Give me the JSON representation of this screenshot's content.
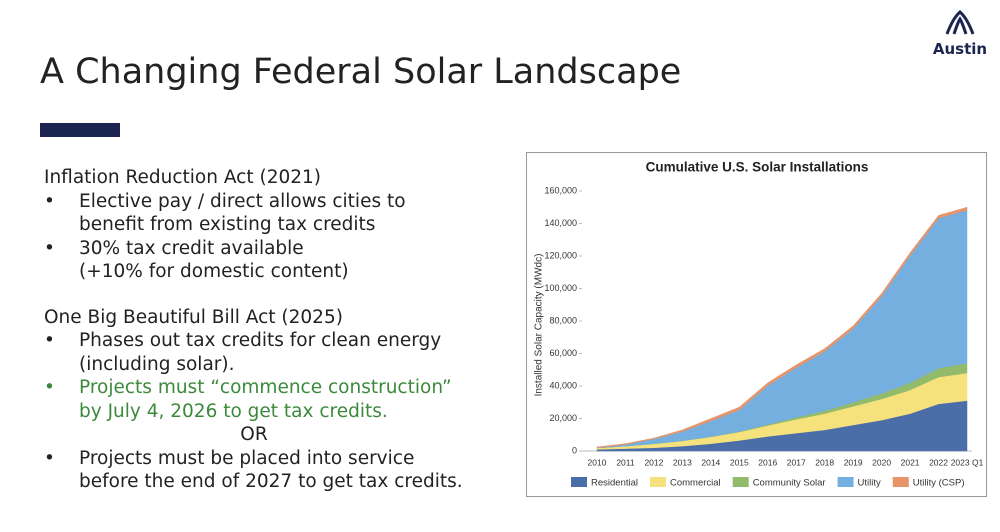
{
  "logo": "Austin",
  "title": "A Changing Federal Solar Landscape",
  "sections": [
    {
      "heading": "Inflation Reduction Act (2021)",
      "bullets": [
        {
          "lines": [
            "Elective pay / direct allows cities to",
            "benefit from existing tax credits"
          ]
        },
        {
          "lines": [
            "30% tax credit available",
            "(+10% for domestic content)"
          ]
        }
      ]
    },
    {
      "heading": "One Big Beautiful Bill Act (2025)",
      "bullets": [
        {
          "lines": [
            "Phases out tax credits for clean energy",
            "(including solar)."
          ]
        },
        {
          "lines": [
            "Projects must “commence construction”",
            "by July 4, 2026 to get tax credits."
          ]
        }
      ],
      "separator": "OR",
      "final_bullet": {
        "lines": [
          "Projects must be placed into service",
          "before the end of 2027 to get tax credits."
        ]
      }
    }
  ],
  "chart_data": {
    "type": "stacked-area",
    "title": "Cumulative U.S. Solar Installations",
    "y_label": "Installed Solar Capacity (MWdc)",
    "categories": [
      "2010",
      "2011",
      "2012",
      "2013",
      "2014",
      "2015",
      "2016",
      "2017",
      "2018",
      "2019",
      "2020",
      "2021",
      "2022",
      "2023 Q1"
    ],
    "ylim": [
      0,
      160000
    ],
    "yticks": [
      0,
      {
        "value": 20000,
        "label": "20,000"
      },
      {
        "value": 40000,
        "label": "40,000"
      },
      {
        "value": 60000,
        "label": "60,000"
      },
      {
        "value": 80000,
        "label": "80,000"
      },
      {
        "value": 100000,
        "label": "100,000"
      },
      {
        "value": 120000,
        "label": "120,000"
      },
      {
        "value": 140000,
        "label": "140,000"
      },
      {
        "value": 160000,
        "label": "160,000"
      }
    ],
    "series": [
      {
        "name": "Residential",
        "color": "#4b6ea8",
        "values": [
          1000,
          1500,
          2000,
          3000,
          4500,
          6500,
          9000,
          11000,
          13000,
          16000,
          19000,
          23000,
          29000,
          31000
        ]
      },
      {
        "name": "Commercial",
        "color": "#f6e27c",
        "values": [
          900,
          1500,
          2400,
          3200,
          4200,
          5200,
          6700,
          8500,
          10000,
          11500,
          13000,
          14500,
          16500,
          17000
        ]
      },
      {
        "name": "Community Solar",
        "color": "#93bb6c",
        "values": [
          0,
          0,
          50,
          100,
          150,
          300,
          600,
          1200,
          1800,
          2500,
          3500,
          4500,
          5500,
          6000
        ]
      },
      {
        "name": "Utility",
        "color": "#74afe0",
        "values": [
          100,
          1000,
          3000,
          5700,
          9600,
          13300,
          24000,
          30600,
          36500,
          45300,
          59800,
          78300,
          92300,
          94300
        ]
      },
      {
        "name": "Utility (CSP)",
        "color": "#e8946a",
        "values": [
          500,
          500,
          500,
          1000,
          1500,
          1700,
          1700,
          1700,
          1700,
          1700,
          1700,
          1700,
          1700,
          1700
        ]
      }
    ]
  }
}
